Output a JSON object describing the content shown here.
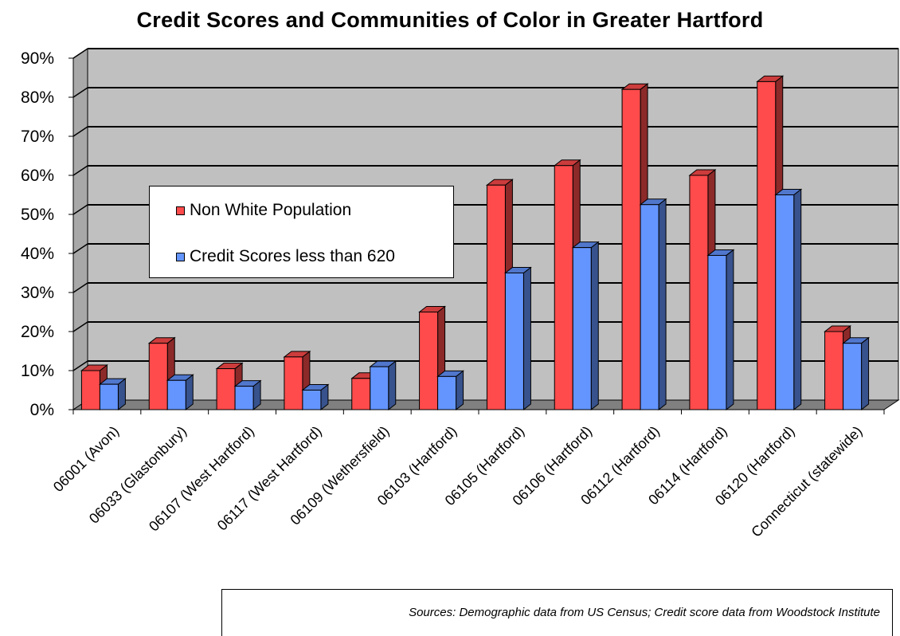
{
  "chart_data": {
    "type": "bar",
    "title": "Credit Scores and Communities of Color in Greater Hartford",
    "categories": [
      "06001 (Avon)",
      "06033 (Glastonbury)",
      "06107 (West Hartford)",
      "06117 (West Hartford)",
      "06109 (Wethersfield)",
      "06103 (Hartford)",
      "06105 (Hartford)",
      "06106 (Hartford)",
      "06112 (Hartford)",
      "06114 (Hartford)",
      "06120 (Hartford)",
      "Connecticut (statewide)"
    ],
    "series": [
      {
        "name": "Non White Population",
        "color": "#ff4b4b",
        "values": [
          10,
          17,
          10.5,
          13.5,
          8,
          25,
          57.5,
          62.5,
          82,
          60,
          84,
          20
        ]
      },
      {
        "name": "Credit Scores less than 620",
        "color": "#6495ff",
        "values": [
          6.5,
          7.5,
          6,
          5,
          11,
          8.5,
          35,
          41.5,
          52.5,
          39.5,
          55,
          17
        ]
      }
    ],
    "y_ticks": [
      "0%",
      "10%",
      "20%",
      "30%",
      "40%",
      "50%",
      "60%",
      "70%",
      "80%",
      "90%"
    ],
    "ylim": [
      0,
      90
    ],
    "grid": true,
    "legend_position": "upper-left inside plot",
    "style": "3d-clustered-column",
    "colors": {
      "wall": "#c0c0c0",
      "floor": "#808080",
      "gridline": "#000000"
    }
  },
  "source_note": "Sources: Demographic data from US Census; Credit score data from Woodstock Institute"
}
